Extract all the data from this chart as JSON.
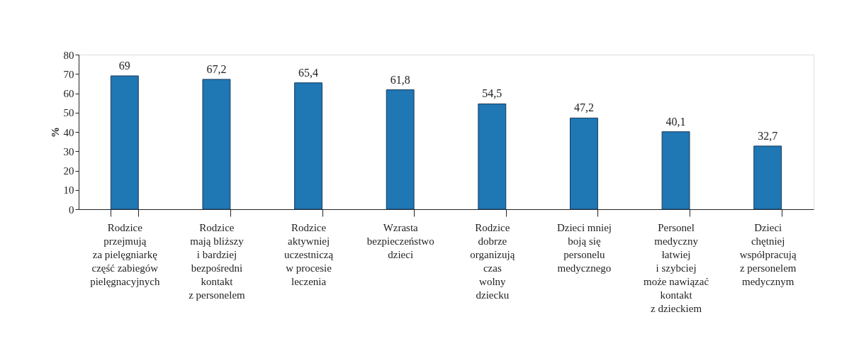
{
  "chart_data": {
    "type": "bar",
    "ylabel": "%",
    "categories": [
      "Rodzice\nprzejmują\nza pielęgniarkę\nczęść zabiegów\npielęgnacyjnych",
      "Rodzice\nmają bliższy\ni bardziej\nbezpośredni\nkontakt\nz personelem",
      "Rodzice\naktywniej\nuczestniczą\nw procesie\nleczenia",
      "Wzrasta\nbezpieczeństwo\ndzieci",
      "Rodzice\ndobrze\norganizują\nczas\nwolny\ndziecku",
      "Dzieci mniej\nboją się\npersonelu\nmedycznego",
      "Personel\nmedyczny\nłatwiej\ni szybciej\nmoże nawiązać\nkontakt\nz dzieckiem",
      "Dzieci\nchętniej\nwspółpracują\nz personelem\nmedycznym"
    ],
    "values": [
      69,
      67.2,
      65.4,
      61.8,
      54.5,
      47.2,
      40.1,
      32.7
    ],
    "value_labels": [
      "69",
      "67,2",
      "65,4",
      "61,8",
      "54,5",
      "47,2",
      "40,1",
      "32,7"
    ],
    "color": "#1f77b4",
    "ylim": [
      0,
      80
    ],
    "yticks": [
      0,
      10,
      20,
      30,
      40,
      50,
      60,
      70,
      80
    ],
    "grid": false
  }
}
